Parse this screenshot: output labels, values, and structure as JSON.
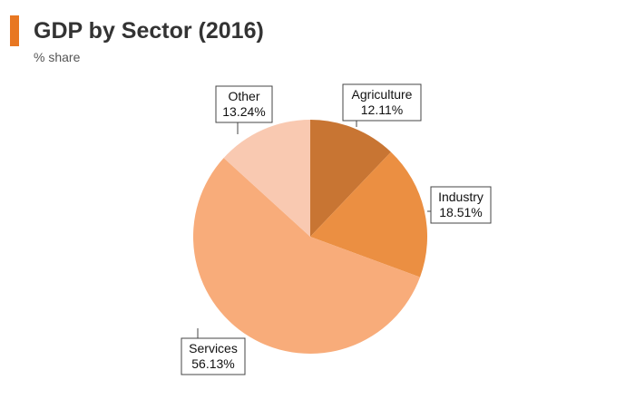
{
  "title": "GDP by Sector (2016)",
  "subtitle": "% share",
  "accent_color": "#E87722",
  "chart_data": {
    "type": "pie",
    "title": "GDP by Sector (2016)",
    "subtitle": "% share",
    "unit": "%",
    "start_angle_deg": 0,
    "direction": "clockwise",
    "slices": [
      {
        "name": "Agriculture",
        "value": 12.11,
        "label": "12.11%",
        "color": "#C87533"
      },
      {
        "name": "Industry",
        "value": 18.51,
        "label": "18.51%",
        "color": "#EB8F42"
      },
      {
        "name": "Services",
        "value": 56.13,
        "label": "56.13%",
        "color": "#F8AC7A"
      },
      {
        "name": "Other",
        "value": 13.24,
        "label": "13.24%",
        "color": "#F9C9B1"
      }
    ]
  }
}
